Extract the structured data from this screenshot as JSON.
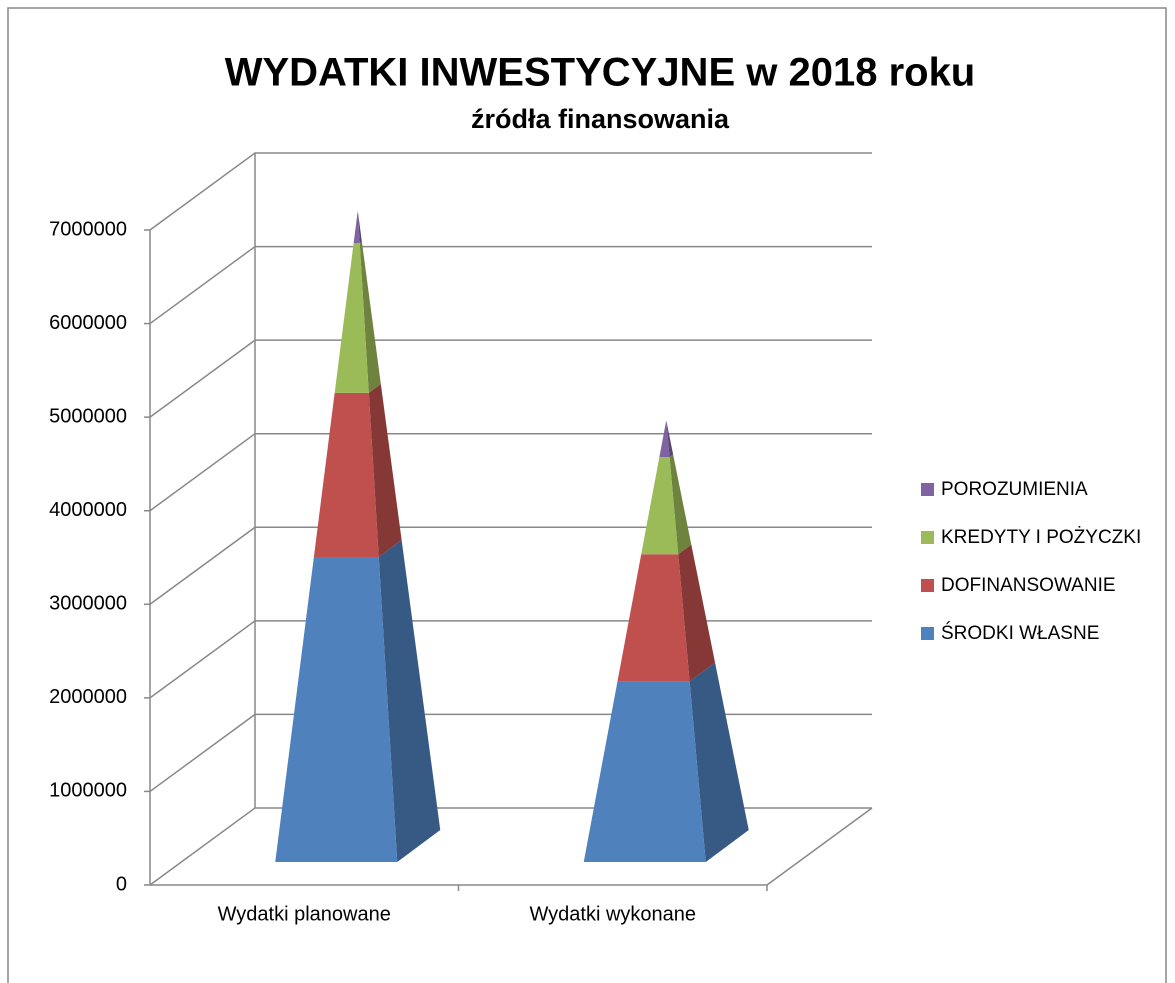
{
  "chart_data": {
    "type": "pyramid3d_stacked",
    "title": "WYDATKI INWESTYCYJNE w 2018 roku",
    "subtitle": "źródła finansowania",
    "categories": [
      "Wydatki planowane",
      "Wydatki wykonane"
    ],
    "series": [
      {
        "name": "ŚRODKI WŁASNE",
        "color": "#4f81bd",
        "values": [
          3180000,
          1860000
        ]
      },
      {
        "name": "DOFINANSOWANIE",
        "color": "#c0504d",
        "values": [
          1710000,
          1310000
        ]
      },
      {
        "name": "KREDYTY I POŻYCZKI",
        "color": "#9bbb59",
        "values": [
          1560000,
          1000000
        ]
      },
      {
        "name": "POROZUMIENIA",
        "color": "#8064a2",
        "values": [
          340000,
          380000
        ]
      }
    ],
    "ylim": [
      0,
      7000000
    ],
    "yticks": [
      0,
      1000000,
      2000000,
      3000000,
      4000000,
      5000000,
      6000000,
      7000000
    ],
    "grid": true,
    "legend": "right"
  }
}
